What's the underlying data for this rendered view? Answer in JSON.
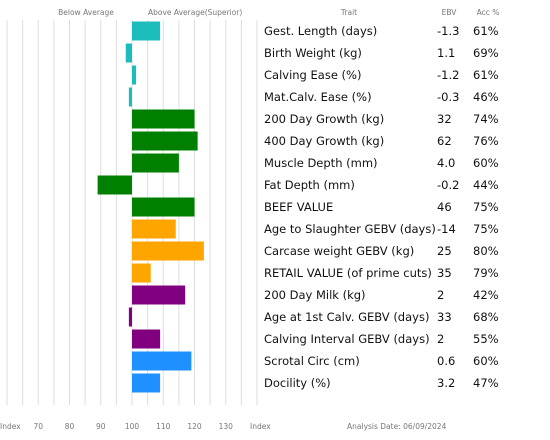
{
  "header": {
    "below_average": "Below Average",
    "above_average": "Above Average(Superior)",
    "trait": "Trait",
    "ebv": "EBV",
    "acc": "Acc %"
  },
  "footer": {
    "index_left": "Index",
    "index_right": "Index",
    "analysis_date": "Analysis Date: 06/09/2024"
  },
  "colors": {
    "teal": "#1abcbc",
    "green": "#007f00",
    "orange": "#ffa500",
    "purple": "#800080",
    "blue": "#1e90ff",
    "grid": "#dddddd"
  },
  "chart_data": {
    "type": "bar",
    "orientation": "horizontal",
    "baseline": 100,
    "xlim": [
      60,
      140
    ],
    "x_ticks": [
      70,
      80,
      90,
      100,
      110,
      120,
      130
    ],
    "grid": true,
    "rows": [
      {
        "trait": "Gest. Length (days)",
        "ebv": "-1.3",
        "acc": "61%",
        "index": 109,
        "color": "#1abcbc"
      },
      {
        "trait": "Birth Weight (kg)",
        "ebv": "1.1",
        "acc": "69%",
        "index": 98,
        "color": "#1abcbc"
      },
      {
        "trait": "Calving Ease (%)",
        "ebv": "-1.2",
        "acc": "61%",
        "index": 101.3,
        "color": "#1abcbc"
      },
      {
        "trait": "Mat.Calv. Ease (%)",
        "ebv": "-0.3",
        "acc": "46%",
        "index": 99,
        "color": "#1abcbc"
      },
      {
        "trait": "200 Day Growth (kg)",
        "ebv": "32",
        "acc": "74%",
        "index": 120,
        "color": "#007f00"
      },
      {
        "trait": "400 Day Growth (kg)",
        "ebv": "62",
        "acc": "76%",
        "index": 121,
        "color": "#007f00"
      },
      {
        "trait": "Muscle Depth (mm)",
        "ebv": "4.0",
        "acc": "60%",
        "index": 115,
        "color": "#007f00"
      },
      {
        "trait": "Fat Depth (mm)",
        "ebv": "-0.2",
        "acc": "44%",
        "index": 89,
        "color": "#007f00"
      },
      {
        "trait": "BEEF VALUE",
        "ebv": "46",
        "acc": "75%",
        "index": 120,
        "color": "#007f00"
      },
      {
        "trait": "Age to Slaughter GEBV (days)",
        "ebv": "-14",
        "acc": "75%",
        "index": 114,
        "color": "#ffa500"
      },
      {
        "trait": "Carcase weight GEBV (kg)",
        "ebv": "25",
        "acc": "80%",
        "index": 123,
        "color": "#ffa500"
      },
      {
        "trait": "RETAIL VALUE (of prime cuts)",
        "ebv": "35",
        "acc": "79%",
        "index": 106,
        "color": "#ffa500"
      },
      {
        "trait": "200 Day Milk (kg)",
        "ebv": "2",
        "acc": "42%",
        "index": 117,
        "color": "#800080"
      },
      {
        "trait": "Age at 1st Calv. GEBV (days)",
        "ebv": "33",
        "acc": "68%",
        "index": 99,
        "color": "#800080"
      },
      {
        "trait": "Calving Interval GEBV (days)",
        "ebv": "2",
        "acc": "55%",
        "index": 109,
        "color": "#800080"
      },
      {
        "trait": "Scrotal Circ (cm)",
        "ebv": "0.6",
        "acc": "60%",
        "index": 119,
        "color": "#1e90ff"
      },
      {
        "trait": "Docility (%)",
        "ebv": "3.2",
        "acc": "47%",
        "index": 109,
        "color": "#1e90ff"
      }
    ]
  }
}
